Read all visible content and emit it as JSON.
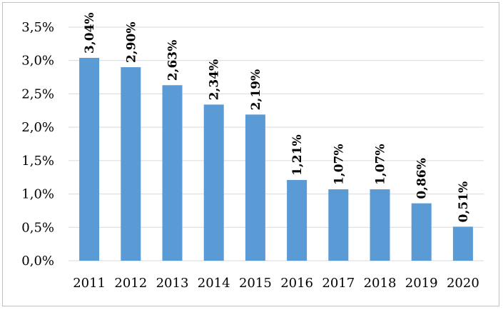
{
  "chart_data": {
    "type": "bar",
    "categories": [
      "2011",
      "2012",
      "2013",
      "2014",
      "2015",
      "2016",
      "2017",
      "2018",
      "2019",
      "2020"
    ],
    "values": [
      3.04,
      2.9,
      2.63,
      2.34,
      2.19,
      1.21,
      1.07,
      1.07,
      0.86,
      0.51
    ],
    "data_labels": [
      "3,04%",
      "2,90%",
      "2,63%",
      "2,34%",
      "2,19%",
      "1,21%",
      "1,07%",
      "1,07%",
      "0,86%",
      "0,51%"
    ],
    "ylim": [
      0,
      3.5
    ],
    "y_ticks": [
      0,
      0.5,
      1.0,
      1.5,
      2.0,
      2.5,
      3.0,
      3.5
    ],
    "y_tick_labels": [
      "0,0%",
      "0,5%",
      "1,0%",
      "1,5%",
      "2,0%",
      "2,5%",
      "3,0%",
      "3,5%"
    ],
    "grid": true,
    "legend": false,
    "colors": {
      "bar": "#5b9bd5",
      "grid": "#d9d9d9",
      "border": "#bfbfbf"
    }
  }
}
